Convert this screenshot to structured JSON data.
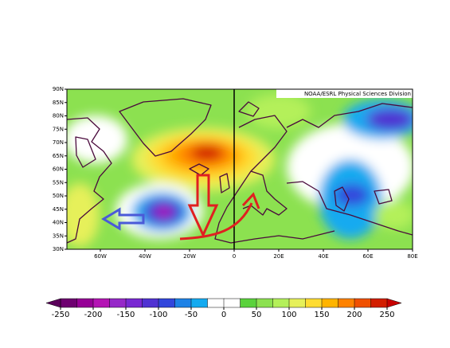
{
  "map": {
    "credit": "NOAA/ESRL Physical Sciences Division",
    "lon_range": [
      -75,
      80
    ],
    "lat_range": [
      30,
      90
    ],
    "lon_ticks": [
      {
        "value": -60,
        "label": "60W"
      },
      {
        "value": -40,
        "label": "40W"
      },
      {
        "value": -20,
        "label": "20W"
      },
      0,
      {
        "value": 20,
        "label": "20E"
      },
      {
        "value": 40,
        "label": "40E"
      },
      {
        "value": 60,
        "label": "60E"
      },
      {
        "value": 80,
        "label": "80E"
      }
    ],
    "lat_ticks": [
      {
        "value": 90,
        "label": "90N"
      },
      {
        "value": 85,
        "label": "85N"
      },
      {
        "value": 80,
        "label": "80N"
      },
      {
        "value": 75,
        "label": "75N"
      },
      {
        "value": 70,
        "label": "70N"
      },
      {
        "value": 65,
        "label": "65N"
      },
      {
        "value": 60,
        "label": "60N"
      },
      {
        "value": 55,
        "label": "55N"
      },
      {
        "value": 50,
        "label": "50N"
      },
      {
        "value": 45,
        "label": "45N"
      },
      {
        "value": 40,
        "label": "40N"
      },
      {
        "value": 35,
        "label": "35N"
      },
      {
        "value": 30,
        "label": "30N"
      }
    ],
    "colorbar": {
      "ticks": [
        -250,
        -200,
        -150,
        -100,
        -50,
        0,
        50,
        100,
        150,
        200,
        250
      ],
      "colors": [
        "#6e0070",
        "#960096",
        "#b414b4",
        "#9628c8",
        "#7828d2",
        "#5032d2",
        "#3246dc",
        "#1e82e6",
        "#14aaf0",
        "#ffffff",
        "#ffffff",
        "#5ad23c",
        "#8ce150",
        "#b4f05a",
        "#e6f05a",
        "#ffdc32",
        "#ffb400",
        "#ff8200",
        "#f05000",
        "#d21e00"
      ],
      "under": "#5a005a",
      "over": "#c80000"
    }
  }
}
